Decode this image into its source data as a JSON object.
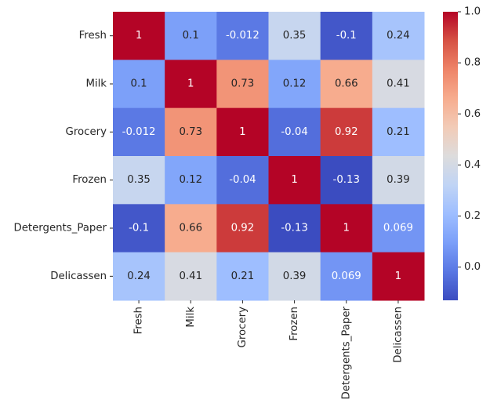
{
  "chart_data": {
    "type": "heatmap",
    "title": "",
    "xlabel": "",
    "ylabel": "",
    "row_labels": [
      "Fresh",
      "Milk",
      "Grocery",
      "Frozen",
      "Detergents_Paper",
      "Delicassen"
    ],
    "col_labels": [
      "Fresh",
      "Milk",
      "Grocery",
      "Frozen",
      "Detergents_Paper",
      "Delicassen"
    ],
    "values": [
      [
        1,
        0.1,
        -0.012,
        0.35,
        -0.1,
        0.24
      ],
      [
        0.1,
        1,
        0.73,
        0.12,
        0.66,
        0.41
      ],
      [
        -0.012,
        0.73,
        1,
        -0.04,
        0.92,
        0.21
      ],
      [
        0.35,
        0.12,
        -0.04,
        1,
        -0.13,
        0.39
      ],
      [
        -0.1,
        0.66,
        0.92,
        -0.13,
        1,
        0.069
      ],
      [
        0.24,
        0.41,
        0.21,
        0.39,
        0.069,
        1
      ]
    ],
    "annotations": [
      [
        "1",
        "0.1",
        "-0.012",
        "0.35",
        "-0.1",
        "0.24"
      ],
      [
        "0.1",
        "1",
        "0.73",
        "0.12",
        "0.66",
        "0.41"
      ],
      [
        "-0.012",
        "0.73",
        "1",
        "-0.04",
        "0.92",
        "0.21"
      ],
      [
        "0.35",
        "0.12",
        "-0.04",
        "1",
        "-0.13",
        "0.39"
      ],
      [
        "-0.1",
        "0.66",
        "0.92",
        "-0.13",
        "1",
        "0.069"
      ],
      [
        "0.24",
        "0.41",
        "0.21",
        "0.39",
        "0.069",
        "1"
      ]
    ],
    "colormap": "coolwarm",
    "colormap_stops": [
      "#3b4cc0",
      "#5977e3",
      "#7b9ff9",
      "#9ebeff",
      "#c0d4f5",
      "#dddcdc",
      "#f2cbb7",
      "#f7ac8e",
      "#ee8468",
      "#d65244",
      "#b40426"
    ],
    "vmin": -0.13,
    "vmax": 1.0,
    "colorbar": {
      "ticks": [
        0.0,
        0.2,
        0.4,
        0.6,
        0.8,
        1.0
      ],
      "tick_labels": [
        "0.0",
        "0.2",
        "0.4",
        "0.6",
        "0.8",
        "1.0"
      ],
      "placement": "right"
    },
    "text_colors": {
      "light": "#ffffff",
      "dark": "#262626"
    },
    "grid": false
  }
}
